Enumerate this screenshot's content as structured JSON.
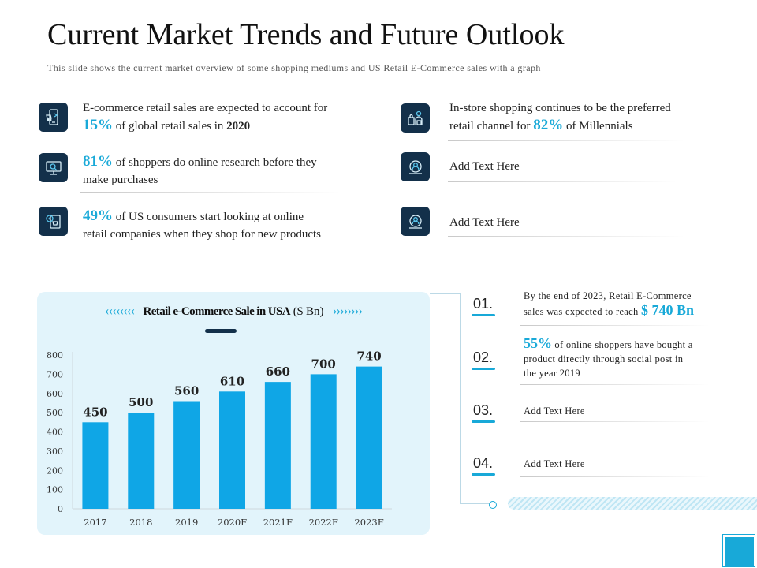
{
  "header": {
    "title": "Current Market Trends and Future Outlook",
    "subtitle": "This slide shows the current market overview of some shopping mediums and US Retail E-Commerce sales with a graph"
  },
  "facts_left": [
    {
      "icon": "mobile-shopping-icon",
      "line1": "E-commerce retail sales are expected to account for",
      "pct": "15%",
      "line2_a": "of global retail sales in ",
      "line2_b": "2020"
    },
    {
      "icon": "online-research-icon",
      "pct": "81%",
      "line1": " of shoppers do online research before they",
      "line2": "make purchases"
    },
    {
      "icon": "online-store-icon",
      "pct": "49%",
      "line1": " of US consumers start looking at online",
      "line2": "retail companies when they shop for new products"
    }
  ],
  "facts_right": [
    {
      "icon": "store-shopping-icon",
      "line1": "In-store shopping continues to be the preferred",
      "line2_a": "retail channel for ",
      "pct": "82%",
      "line2_b": " of Millennials"
    },
    {
      "icon": "person-target-icon",
      "text": "Add Text Here"
    },
    {
      "icon": "person-target-icon",
      "text": "Add Text Here"
    }
  ],
  "chart": {
    "arrows_left": "‹‹‹‹‹‹‹‹",
    "arrows_right": "››››››››",
    "title_bold": "Retail e-Commerce Sale in USA",
    "title_unit": " ($ Bn)"
  },
  "chart_data": {
    "type": "bar",
    "title": "Retail e-Commerce Sale in USA ($ Bn)",
    "categories": [
      "2017",
      "2018",
      "2019",
      "2020F",
      "2021F",
      "2022F",
      "2023F"
    ],
    "values": [
      450,
      500,
      560,
      610,
      660,
      700,
      740
    ],
    "yticks": [
      "0",
      "100",
      "200",
      "300",
      "400",
      "500",
      "600",
      "700",
      "800"
    ],
    "ylim": [
      0,
      800
    ],
    "bar_color": "#0fa6e6",
    "grid": false,
    "legend": "none"
  },
  "timeline": [
    {
      "num": "01.",
      "line1": "By the end of 2023, Retail E-Commerce",
      "line2": "sales was expected to reach ",
      "big": "$ 740 Bn"
    },
    {
      "num": "02.",
      "big": "55%",
      "line1": " of online shoppers have bought a",
      "line2": "product directly through social post in",
      "line3": "the year 2019"
    },
    {
      "num": "03.",
      "text": "Add Text Here"
    },
    {
      "num": "04.",
      "text": "Add Text Here"
    }
  ],
  "colors": {
    "accent": "#18a9d8",
    "icon_bg": "#13304a",
    "panel_bg": "#e2f4fb"
  }
}
